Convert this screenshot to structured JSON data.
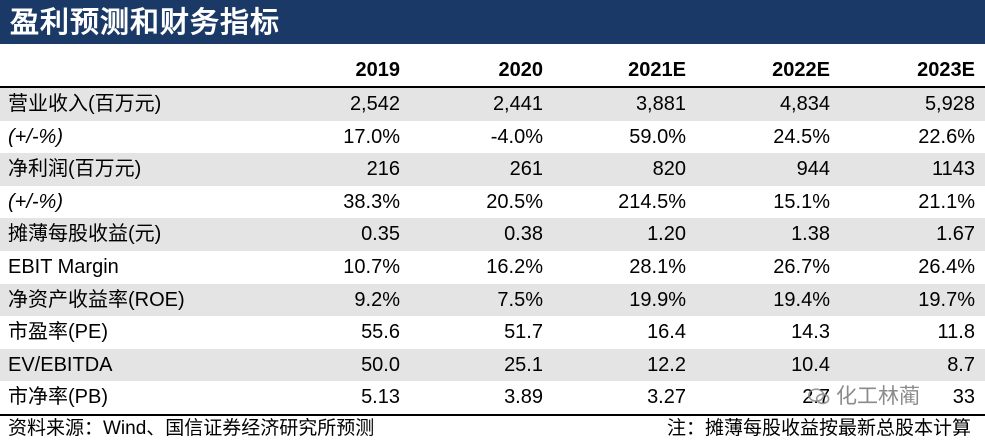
{
  "title": "盈利预测和财务指标",
  "columns": [
    "2019",
    "2020",
    "2021E",
    "2022E",
    "2023E"
  ],
  "rows": [
    {
      "label": "营业收入(百万元)",
      "values": [
        "2,542",
        "2,441",
        "3,881",
        "4,834",
        "5,928"
      ]
    },
    {
      "label": "(+/-%)",
      "values": [
        "17.0%",
        "-4.0%",
        "59.0%",
        "24.5%",
        "22.6%"
      ]
    },
    {
      "label": "净利润(百万元)",
      "values": [
        "216",
        "261",
        "820",
        "944",
        "1143"
      ]
    },
    {
      "label": "(+/-%)",
      "values": [
        "38.3%",
        "20.5%",
        "214.5%",
        "15.1%",
        "21.1%"
      ]
    },
    {
      "label": "摊薄每股收益(元)",
      "values": [
        "0.35",
        "0.38",
        "1.20",
        "1.38",
        "1.67"
      ]
    },
    {
      "label": "EBIT Margin",
      "values": [
        "10.7%",
        "16.2%",
        "28.1%",
        "26.7%",
        "26.4%"
      ]
    },
    {
      "label": "净资产收益率(ROE)",
      "values": [
        "9.2%",
        "7.5%",
        "19.9%",
        "19.4%",
        "19.7%"
      ]
    },
    {
      "label": "市盈率(PE)",
      "values": [
        "55.6",
        "51.7",
        "16.4",
        "14.3",
        "11.8"
      ]
    },
    {
      "label": "EV/EBITDA",
      "values": [
        "50.0",
        "25.1",
        "12.2",
        "10.4",
        "8.7"
      ]
    },
    {
      "label": "市净率(PB)",
      "values": [
        "5.13",
        "3.89",
        "3.27",
        "2.7",
        "33"
      ]
    }
  ],
  "source_note": "资料来源：Wind、国信证券经济研究所预测",
  "right_note": "注：摊薄每股收益按最新总股本计算",
  "watermark": "化工林蔺",
  "colors": {
    "banner": "#1a3966",
    "shade": "#e4e4e4"
  }
}
